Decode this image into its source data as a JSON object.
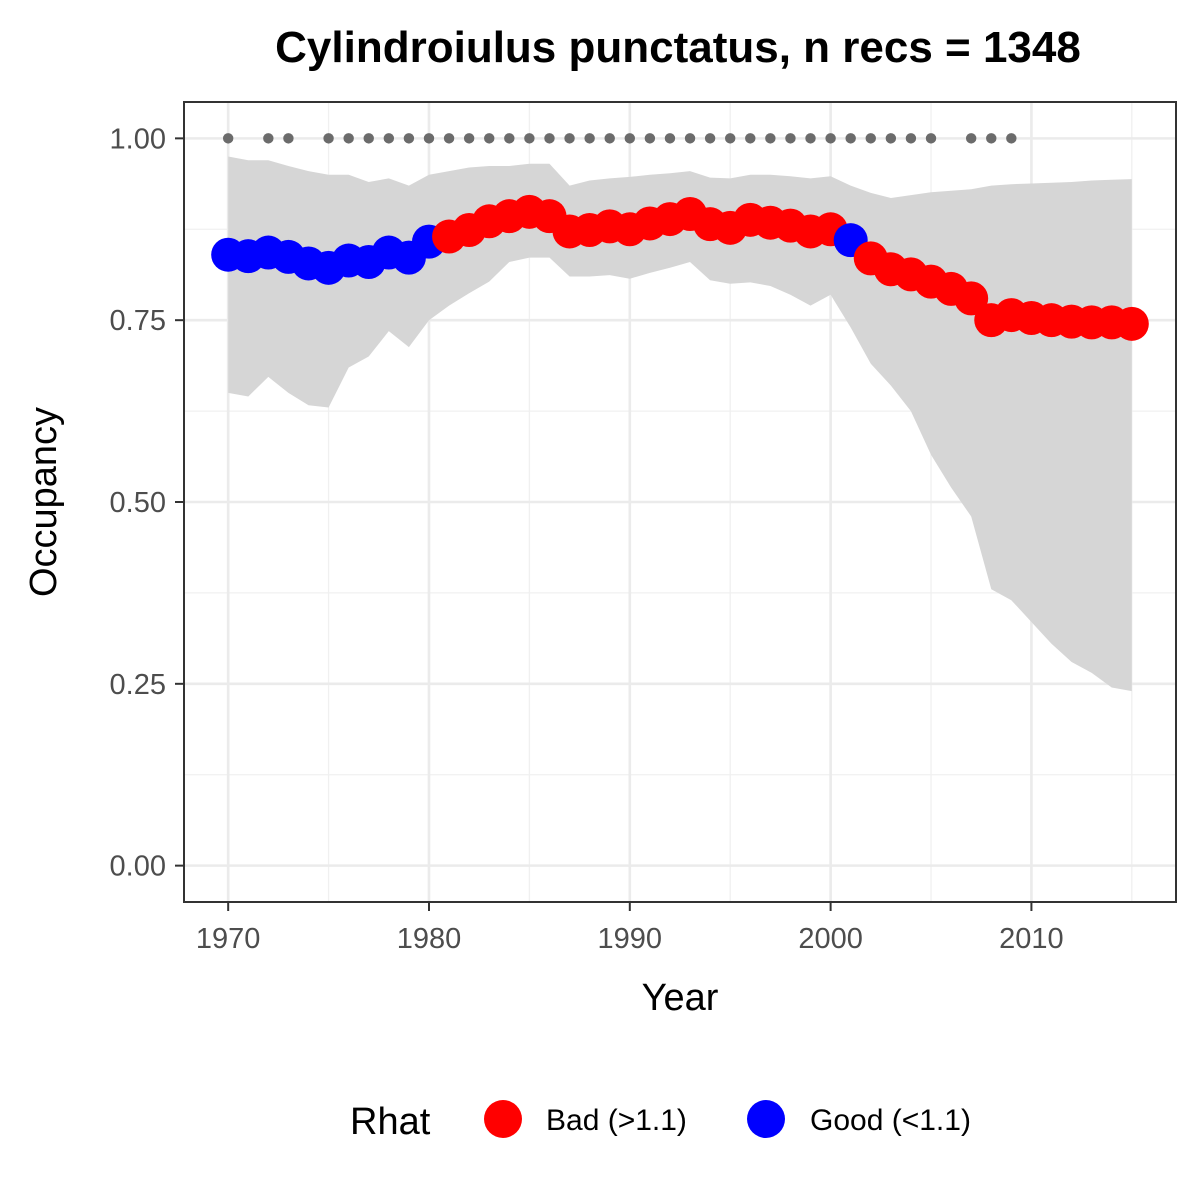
{
  "chart_data": {
    "type": "line",
    "title": "Cylindroiulus punctatus, n recs = 1348",
    "xlabel": "Year",
    "ylabel": "Occupancy",
    "xlim": [
      1967.8,
      2017.2
    ],
    "ylim": [
      -0.05,
      1.05
    ],
    "x_ticks": [
      1970,
      1980,
      1990,
      2000,
      2010
    ],
    "x_tick_labels": [
      "1970",
      "1980",
      "1990",
      "2000",
      "2010"
    ],
    "y_ticks": [
      0,
      0.25,
      0.5,
      0.75,
      1.0
    ],
    "y_tick_labels": [
      "0.00",
      "0.25",
      "0.50",
      "0.75",
      "1.00"
    ],
    "grid": true,
    "legend": {
      "title": "Rhat",
      "position": "bottom",
      "items": [
        {
          "label": "Bad (>1.1)",
          "color": "#ff0000"
        },
        {
          "label": "Good (<1.1)",
          "color": "#0000ff"
        }
      ]
    },
    "colors": {
      "bad": "#ff0000",
      "good": "#0000ff",
      "ribbon": "#d6d6d6",
      "record_dots": "#6b6b6b"
    },
    "x": [
      1970,
      1971,
      1972,
      1973,
      1974,
      1975,
      1976,
      1977,
      1978,
      1979,
      1980,
      1981,
      1982,
      1983,
      1984,
      1985,
      1986,
      1987,
      1988,
      1989,
      1990,
      1991,
      1992,
      1993,
      1994,
      1995,
      1996,
      1997,
      1998,
      1999,
      2000,
      2001,
      2002,
      2003,
      2004,
      2005,
      2006,
      2007,
      2008,
      2009,
      2010,
      2011,
      2012,
      2013,
      2014,
      2015
    ],
    "occupancy": [
      0.84,
      0.838,
      0.843,
      0.837,
      0.828,
      0.822,
      0.832,
      0.83,
      0.843,
      0.836,
      0.858,
      0.865,
      0.874,
      0.886,
      0.893,
      0.899,
      0.893,
      0.872,
      0.874,
      0.879,
      0.875,
      0.883,
      0.889,
      0.896,
      0.882,
      0.877,
      0.888,
      0.884,
      0.88,
      0.872,
      0.875,
      0.86,
      0.835,
      0.82,
      0.813,
      0.803,
      0.793,
      0.78,
      0.75,
      0.757,
      0.753,
      0.75,
      0.748,
      0.747,
      0.747,
      0.745
    ],
    "rhat": [
      "Good",
      "Good",
      "Good",
      "Good",
      "Good",
      "Good",
      "Good",
      "Good",
      "Good",
      "Good",
      "Good",
      "Bad",
      "Bad",
      "Bad",
      "Bad",
      "Bad",
      "Bad",
      "Bad",
      "Bad",
      "Bad",
      "Bad",
      "Bad",
      "Bad",
      "Bad",
      "Bad",
      "Bad",
      "Bad",
      "Bad",
      "Bad",
      "Bad",
      "Bad",
      "Good",
      "Bad",
      "Bad",
      "Bad",
      "Bad",
      "Bad",
      "Bad",
      "Bad",
      "Bad",
      "Bad",
      "Bad",
      "Bad",
      "Bad",
      "Bad",
      "Bad"
    ],
    "lower_ci": [
      0.65,
      0.645,
      0.672,
      0.65,
      0.633,
      0.63,
      0.685,
      0.7,
      0.735,
      0.713,
      0.75,
      0.77,
      0.787,
      0.803,
      0.83,
      0.836,
      0.836,
      0.81,
      0.81,
      0.812,
      0.807,
      0.815,
      0.822,
      0.83,
      0.805,
      0.8,
      0.802,
      0.797,
      0.785,
      0.77,
      0.785,
      0.74,
      0.69,
      0.66,
      0.625,
      0.565,
      0.52,
      0.48,
      0.38,
      0.365,
      0.335,
      0.305,
      0.28,
      0.265,
      0.245,
      0.24
    ],
    "upper_ci": [
      0.975,
      0.97,
      0.97,
      0.962,
      0.955,
      0.95,
      0.95,
      0.94,
      0.945,
      0.935,
      0.95,
      0.955,
      0.96,
      0.962,
      0.962,
      0.965,
      0.965,
      0.935,
      0.942,
      0.945,
      0.947,
      0.95,
      0.952,
      0.955,
      0.946,
      0.945,
      0.95,
      0.95,
      0.948,
      0.945,
      0.948,
      0.935,
      0.925,
      0.918,
      0.922,
      0.926,
      0.928,
      0.93,
      0.935,
      0.937,
      0.938,
      0.939,
      0.94,
      0.942,
      0.943,
      0.944
    ],
    "record_years": [
      1970,
      1972,
      1973,
      1975,
      1976,
      1977,
      1978,
      1979,
      1980,
      1981,
      1982,
      1983,
      1984,
      1985,
      1986,
      1987,
      1988,
      1989,
      1990,
      1991,
      1992,
      1993,
      1994,
      1995,
      1996,
      1997,
      1998,
      1999,
      2000,
      2001,
      2002,
      2003,
      2004,
      2005,
      2007,
      2008,
      2009
    ],
    "record_y": 1.0
  }
}
